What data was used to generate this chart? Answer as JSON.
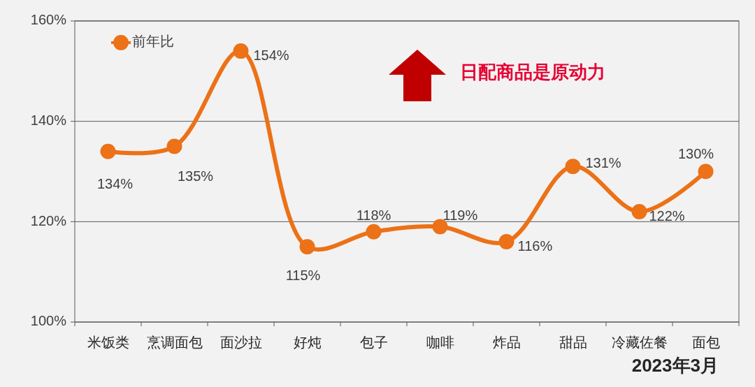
{
  "chart_data": {
    "type": "line",
    "categories": [
      "米饭类",
      "烹调面包",
      "面沙拉",
      "好炖",
      "包子",
      "咖啡",
      "炸品",
      "甜品",
      "冷藏佐餐",
      "面包"
    ],
    "series": [
      {
        "name": "前年比",
        "color": "#ec7117",
        "values": [
          134,
          135,
          154,
          115,
          118,
          119,
          116,
          131,
          122,
          130
        ],
        "value_labels": [
          "134%",
          "135%",
          "154%",
          "115%",
          "118%",
          "119%",
          "116%",
          "131%",
          "122%",
          "130%"
        ]
      }
    ],
    "ylim": [
      100,
      160
    ],
    "yticks": [
      {
        "value": 100,
        "label": "100%"
      },
      {
        "value": 120,
        "label": "120%"
      },
      {
        "value": 140,
        "label": "140%"
      },
      {
        "value": 160,
        "label": "160%"
      }
    ],
    "grid": "y",
    "legend": "top left",
    "marker": "circle",
    "line_style": "solid",
    "annotations": [
      "日配商品是原动力",
      "2023年3月"
    ]
  }
}
